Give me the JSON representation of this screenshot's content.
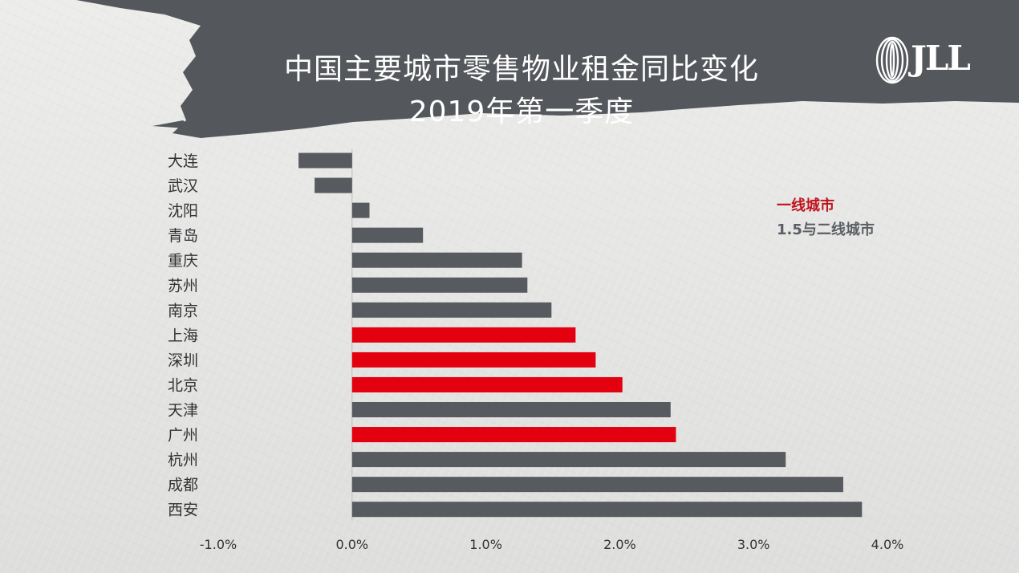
{
  "title": {
    "line1": "中国主要城市零售物业租金同比变化",
    "line2": "2019年第一季度"
  },
  "logo": {
    "text": "JLL"
  },
  "legend": {
    "tier1": "一线城市",
    "tier2": "1.5与二线城市"
  },
  "colors": {
    "tier1": "#e3000f",
    "tier2": "#575a5e",
    "banner": "#54575b",
    "axis_text": "#333333"
  },
  "chart_data": {
    "type": "bar",
    "orientation": "horizontal",
    "title": "中国主要城市零售物业租金同比变化 2019年第一季度",
    "categories": [
      "大连",
      "武汉",
      "沈阳",
      "青岛",
      "重庆",
      "苏州",
      "南京",
      "上海",
      "深圳",
      "北京",
      "天津",
      "广州",
      "杭州",
      "成都",
      "西安"
    ],
    "values": [
      -0.4,
      -0.28,
      0.13,
      0.53,
      1.27,
      1.31,
      1.49,
      1.67,
      1.82,
      2.02,
      2.38,
      2.42,
      3.24,
      3.67,
      3.81
    ],
    "tier": [
      "tier2",
      "tier2",
      "tier2",
      "tier2",
      "tier2",
      "tier2",
      "tier2",
      "tier1",
      "tier1",
      "tier1",
      "tier2",
      "tier1",
      "tier2",
      "tier2",
      "tier2"
    ],
    "xlim": [
      -1.0,
      4.0
    ],
    "xticks": [
      -1.0,
      0.0,
      1.0,
      2.0,
      3.0,
      4.0
    ],
    "xtick_labels": [
      "-1.0%",
      "0.0%",
      "1.0%",
      "2.0%",
      "3.0%",
      "4.0%"
    ],
    "value_unit": "%",
    "grid": false,
    "legend_position": "top-right"
  }
}
